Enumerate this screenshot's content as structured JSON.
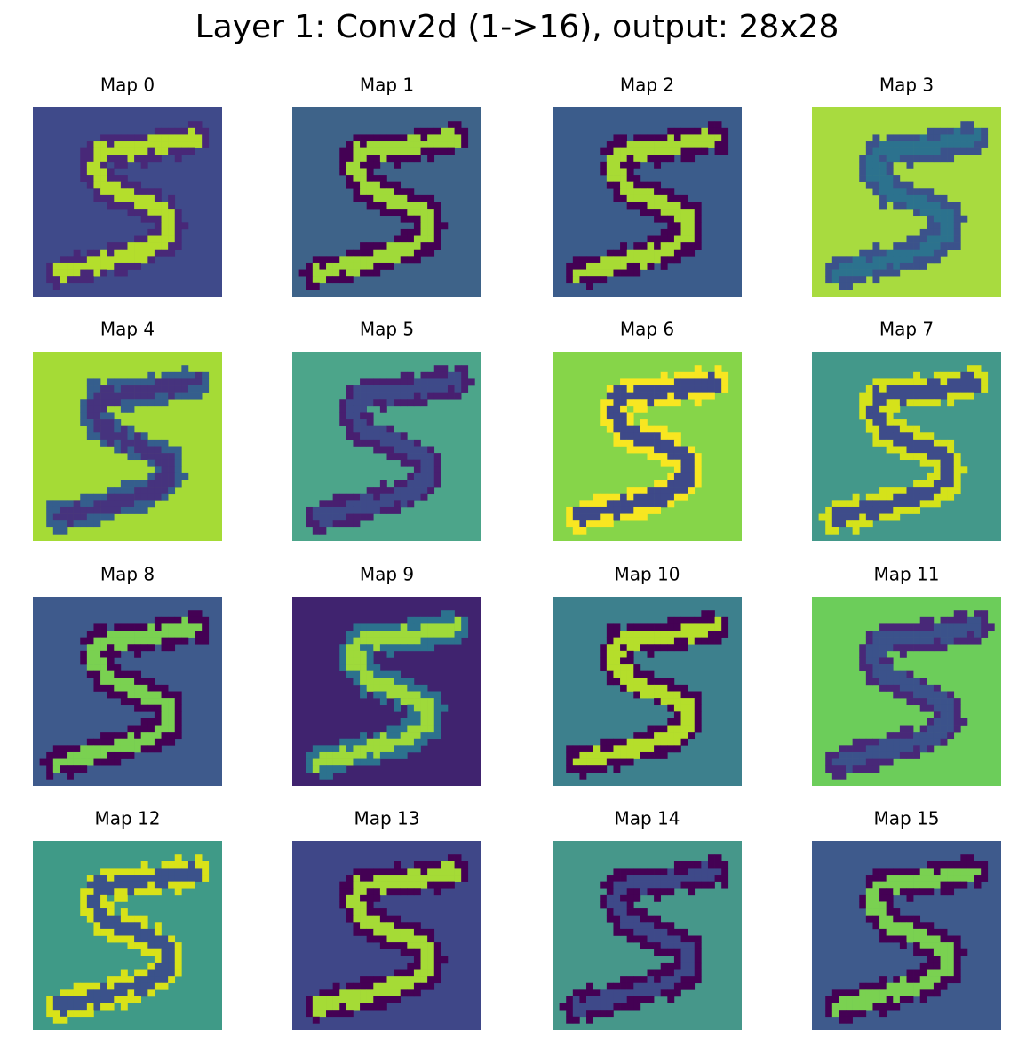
{
  "chart_data": {
    "type": "image_grid",
    "title": "Layer 1: Conv2d (1->16), output: 28x28",
    "panels": [
      {
        "title": "Map 0",
        "background": "#3f4a8a",
        "stroke": "#b4de2c",
        "edge": "#482878"
      },
      {
        "title": "Map 1",
        "background": "#3e6389",
        "stroke": "#a0da39",
        "edge": "#440154"
      },
      {
        "title": "Map 2",
        "background": "#3b5c8b",
        "stroke": "#a8db34",
        "edge": "#440154"
      },
      {
        "title": "Map 3",
        "background": "#a8db3f",
        "stroke": "#2c728e",
        "edge": "#3b528b"
      },
      {
        "title": "Map 4",
        "background": "#a5db36",
        "stroke": "#46337e",
        "edge": "#355e8d"
      },
      {
        "title": "Map 5",
        "background": "#4ca58a",
        "stroke": "#3e4a89",
        "edge": "#481f70"
      },
      {
        "title": "Map 6",
        "background": "#86d549",
        "stroke": "#3e4989",
        "edge": "#f8e621"
      },
      {
        "title": "Map 7",
        "background": "#43988a",
        "stroke": "#3e4c8a",
        "edge": "#d5e21a"
      },
      {
        "title": "Map 8",
        "background": "#3e5a8c",
        "stroke": "#7ad151",
        "edge": "#440154"
      },
      {
        "title": "Map 9",
        "background": "#40236f",
        "stroke": "#9fda3a",
        "edge": "#2c728e"
      },
      {
        "title": "Map 10",
        "background": "#3d808d",
        "stroke": "#b5de2b",
        "edge": "#440154"
      },
      {
        "title": "Map 11",
        "background": "#6ccd5a",
        "stroke": "#3b528b",
        "edge": "#482878"
      },
      {
        "title": "Map 12",
        "background": "#3f9a87",
        "stroke": "#3b528b",
        "edge": "#d8e219"
      },
      {
        "title": "Map 13",
        "background": "#3f4788",
        "stroke": "#a5db36",
        "edge": "#440154"
      },
      {
        "title": "Map 14",
        "background": "#46978a",
        "stroke": "#3e4989",
        "edge": "#440154"
      },
      {
        "title": "Map 15",
        "background": "#3e5a8c",
        "stroke": "#7ad151",
        "edge": "#440154"
      }
    ]
  }
}
